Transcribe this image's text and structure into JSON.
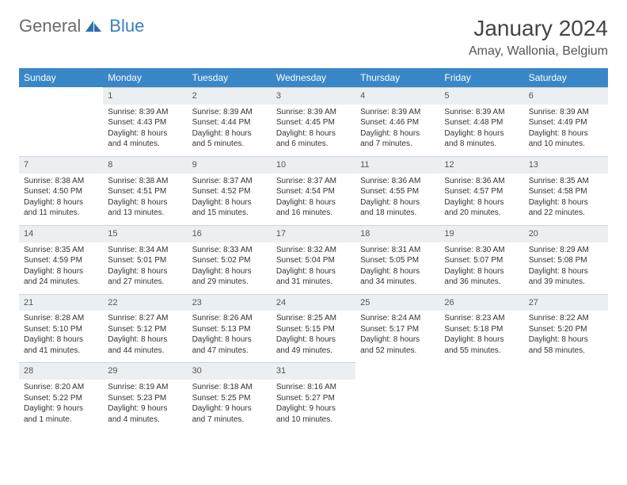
{
  "logo": {
    "part1": "General",
    "part2": "Blue"
  },
  "title": "January 2024",
  "location": "Amay, Wallonia, Belgium",
  "colors": {
    "header_bg": "#3a87c7",
    "header_text": "#ffffff",
    "daynum_bg": "#eceff1",
    "text": "#333333",
    "logo_gray": "#6a6a6a",
    "logo_blue": "#3a7fbf"
  },
  "dayNames": [
    "Sunday",
    "Monday",
    "Tuesday",
    "Wednesday",
    "Thursday",
    "Friday",
    "Saturday"
  ],
  "startDayIndex": 1,
  "daysInMonth": 31,
  "days": {
    "1": {
      "sunrise": "8:39 AM",
      "sunset": "4:43 PM",
      "daylight": "8 hours and 4 minutes."
    },
    "2": {
      "sunrise": "8:39 AM",
      "sunset": "4:44 PM",
      "daylight": "8 hours and 5 minutes."
    },
    "3": {
      "sunrise": "8:39 AM",
      "sunset": "4:45 PM",
      "daylight": "8 hours and 6 minutes."
    },
    "4": {
      "sunrise": "8:39 AM",
      "sunset": "4:46 PM",
      "daylight": "8 hours and 7 minutes."
    },
    "5": {
      "sunrise": "8:39 AM",
      "sunset": "4:48 PM",
      "daylight": "8 hours and 8 minutes."
    },
    "6": {
      "sunrise": "8:39 AM",
      "sunset": "4:49 PM",
      "daylight": "8 hours and 10 minutes."
    },
    "7": {
      "sunrise": "8:38 AM",
      "sunset": "4:50 PM",
      "daylight": "8 hours and 11 minutes."
    },
    "8": {
      "sunrise": "8:38 AM",
      "sunset": "4:51 PM",
      "daylight": "8 hours and 13 minutes."
    },
    "9": {
      "sunrise": "8:37 AM",
      "sunset": "4:52 PM",
      "daylight": "8 hours and 15 minutes."
    },
    "10": {
      "sunrise": "8:37 AM",
      "sunset": "4:54 PM",
      "daylight": "8 hours and 16 minutes."
    },
    "11": {
      "sunrise": "8:36 AM",
      "sunset": "4:55 PM",
      "daylight": "8 hours and 18 minutes."
    },
    "12": {
      "sunrise": "8:36 AM",
      "sunset": "4:57 PM",
      "daylight": "8 hours and 20 minutes."
    },
    "13": {
      "sunrise": "8:35 AM",
      "sunset": "4:58 PM",
      "daylight": "8 hours and 22 minutes."
    },
    "14": {
      "sunrise": "8:35 AM",
      "sunset": "4:59 PM",
      "daylight": "8 hours and 24 minutes."
    },
    "15": {
      "sunrise": "8:34 AM",
      "sunset": "5:01 PM",
      "daylight": "8 hours and 27 minutes."
    },
    "16": {
      "sunrise": "8:33 AM",
      "sunset": "5:02 PM",
      "daylight": "8 hours and 29 minutes."
    },
    "17": {
      "sunrise": "8:32 AM",
      "sunset": "5:04 PM",
      "daylight": "8 hours and 31 minutes."
    },
    "18": {
      "sunrise": "8:31 AM",
      "sunset": "5:05 PM",
      "daylight": "8 hours and 34 minutes."
    },
    "19": {
      "sunrise": "8:30 AM",
      "sunset": "5:07 PM",
      "daylight": "8 hours and 36 minutes."
    },
    "20": {
      "sunrise": "8:29 AM",
      "sunset": "5:08 PM",
      "daylight": "8 hours and 39 minutes."
    },
    "21": {
      "sunrise": "8:28 AM",
      "sunset": "5:10 PM",
      "daylight": "8 hours and 41 minutes."
    },
    "22": {
      "sunrise": "8:27 AM",
      "sunset": "5:12 PM",
      "daylight": "8 hours and 44 minutes."
    },
    "23": {
      "sunrise": "8:26 AM",
      "sunset": "5:13 PM",
      "daylight": "8 hours and 47 minutes."
    },
    "24": {
      "sunrise": "8:25 AM",
      "sunset": "5:15 PM",
      "daylight": "8 hours and 49 minutes."
    },
    "25": {
      "sunrise": "8:24 AM",
      "sunset": "5:17 PM",
      "daylight": "8 hours and 52 minutes."
    },
    "26": {
      "sunrise": "8:23 AM",
      "sunset": "5:18 PM",
      "daylight": "8 hours and 55 minutes."
    },
    "27": {
      "sunrise": "8:22 AM",
      "sunset": "5:20 PM",
      "daylight": "8 hours and 58 minutes."
    },
    "28": {
      "sunrise": "8:20 AM",
      "sunset": "5:22 PM",
      "daylight": "9 hours and 1 minute."
    },
    "29": {
      "sunrise": "8:19 AM",
      "sunset": "5:23 PM",
      "daylight": "9 hours and 4 minutes."
    },
    "30": {
      "sunrise": "8:18 AM",
      "sunset": "5:25 PM",
      "daylight": "9 hours and 7 minutes."
    },
    "31": {
      "sunrise": "8:16 AM",
      "sunset": "5:27 PM",
      "daylight": "9 hours and 10 minutes."
    }
  },
  "labels": {
    "sunrise": "Sunrise:",
    "sunset": "Sunset:",
    "daylight": "Daylight:"
  }
}
